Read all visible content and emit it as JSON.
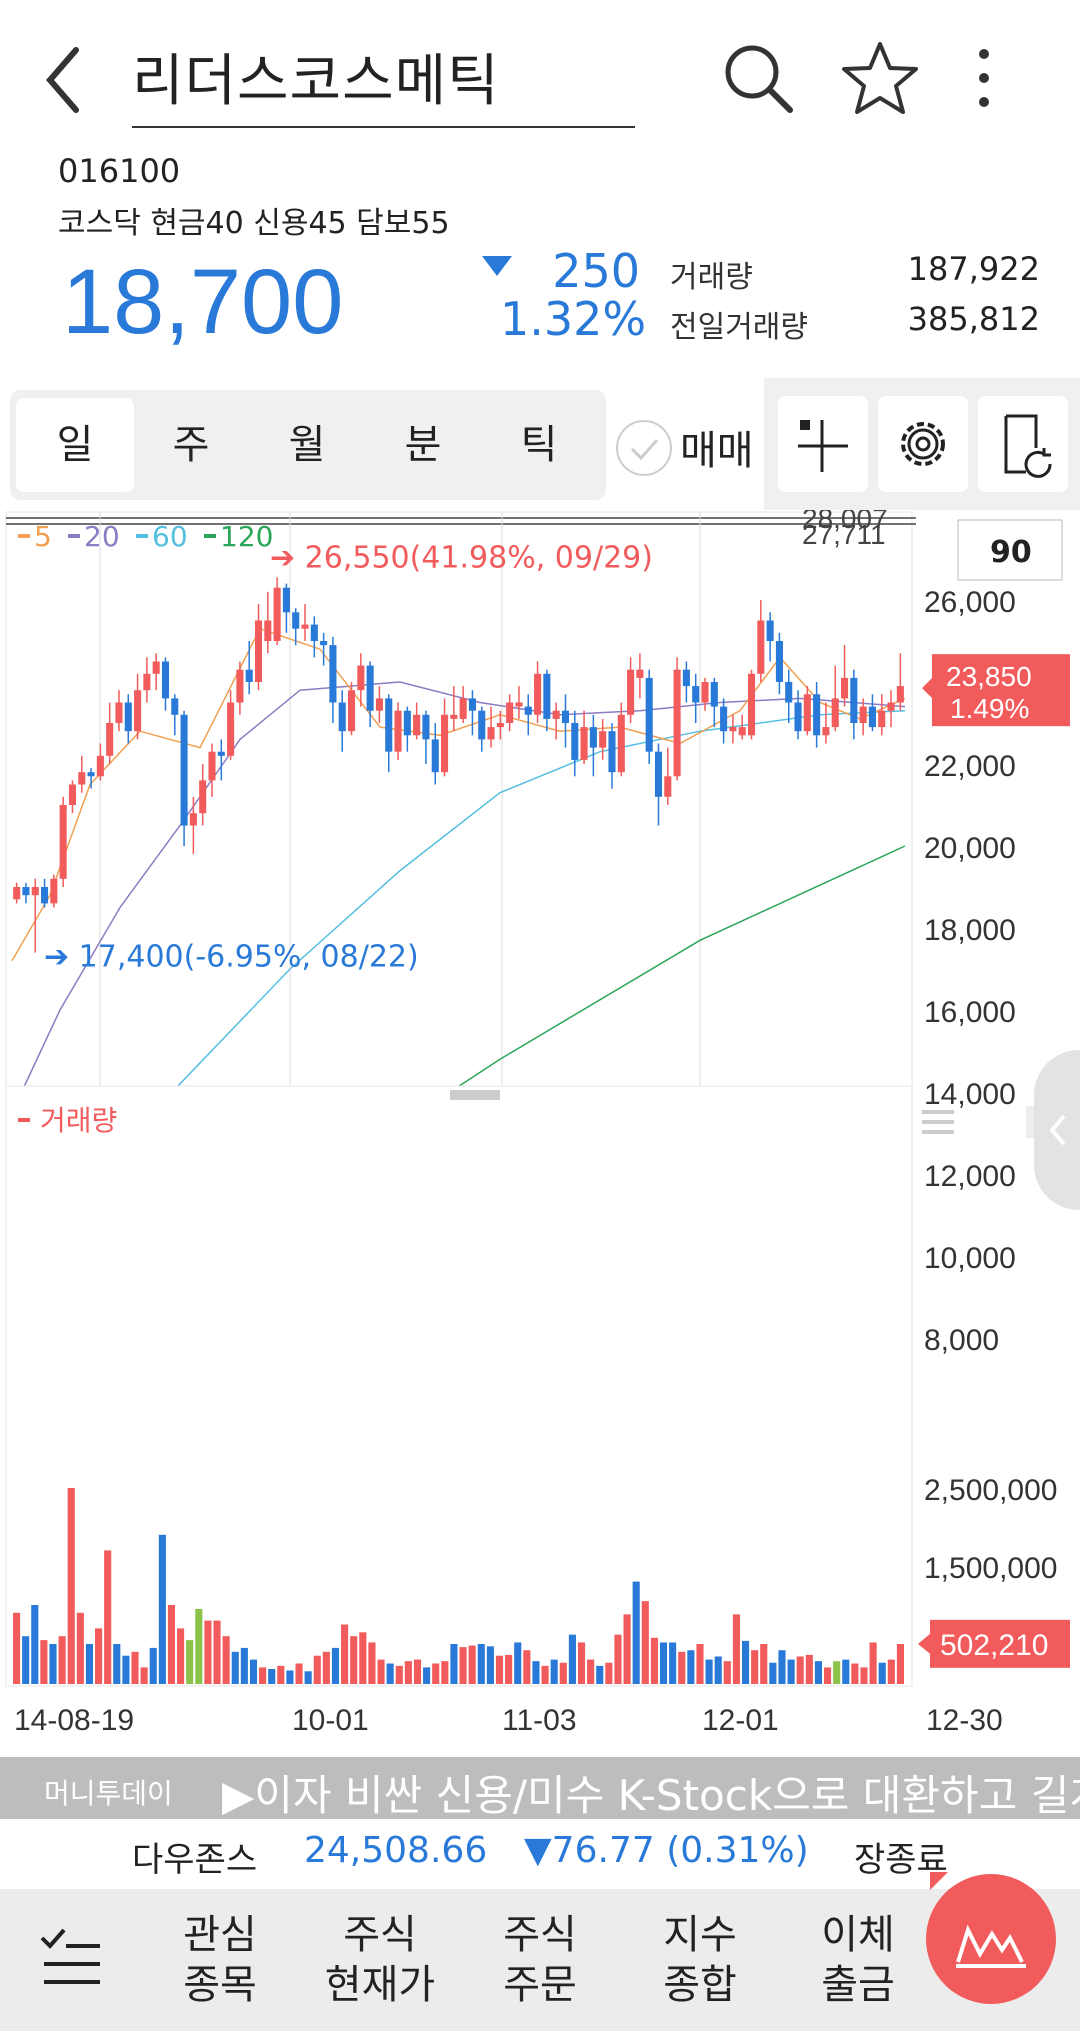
{
  "header": {
    "title": "리더스코스메틱"
  },
  "stock": {
    "code": "016100",
    "market_info": "코스닥 현금40 신용45 담보55",
    "price": "18,700",
    "change": "250",
    "change_pct": "1.32%",
    "volume_label": "거래량",
    "volume": "187,922",
    "prev_volume_label": "전일거래량",
    "prev_volume": "385,812"
  },
  "tabs": [
    "일",
    "주",
    "월",
    "분",
    "틱"
  ],
  "trade_toggle_label": "매매",
  "colors": {
    "up": "#f25b5b",
    "down": "#2979d9",
    "flat": "#8bc34a"
  },
  "chart_data": {
    "type": "candlestick",
    "period_box": "90",
    "ma_legend": [
      "5",
      "20",
      "60",
      "120"
    ],
    "ma_colors": [
      "#f0a050",
      "#8c7cc4",
      "#55bfe0",
      "#2aa55a"
    ],
    "ylim": [
      7000,
      27000
    ],
    "y_ticks": [
      "26,000",
      "22,000",
      "20,000",
      "18,000",
      "16,000",
      "14,000",
      "12,000",
      "10,000",
      "8,000"
    ],
    "top_labels": [
      "28,007",
      "27,711"
    ],
    "high_annotation": "26,550(41.98%, 09/29)",
    "low_annotation": "17,400(-6.95%, 08/22)",
    "last_price_tag": "23,850",
    "last_pct_tag": "1.49%",
    "x_labels": [
      "14-08-19",
      "10-01",
      "11-03",
      "12-01",
      "12-30"
    ],
    "volume_label": "거래량",
    "volume_ticks": [
      "2,500,000",
      "1,500,000"
    ],
    "last_volume_tag": "502,210"
  },
  "ticker": {
    "source": "머니투데이",
    "message": "▶이자 비싼 신용/미수 K-Stock으로 대환하고 길게"
  },
  "index_bar": {
    "name": "다우존스",
    "value": "24,508.66",
    "change": "▼76.77 (0.31%)",
    "status": "장종료"
  },
  "nav": [
    {
      "line1": "관심",
      "line2": "종목"
    },
    {
      "line1": "주식",
      "line2": "현재가"
    },
    {
      "line1": "주식",
      "line2": "주문"
    },
    {
      "line1": "지수",
      "line2": "종합"
    },
    {
      "line1": "이체",
      "line2": "출금"
    }
  ]
}
